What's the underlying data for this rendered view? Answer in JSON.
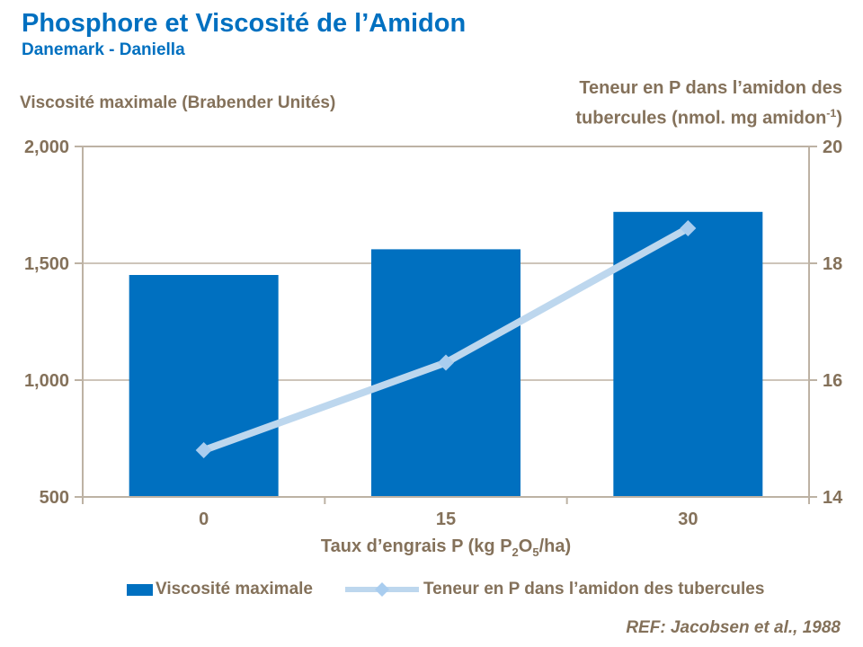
{
  "header": {
    "title": "Phosphore et Viscosité de l’Amidon",
    "subtitle": "Danemark - Daniella"
  },
  "axes": {
    "left_title": "Viscosité maximale (Brabender Unités)",
    "right_title": {
      "line1": "Teneur en P dans l’amidon des",
      "line2_pre": "tubercules (nmol. mg amidon",
      "sup": "-1",
      "line2_post": ")"
    },
    "x_title": {
      "pre": "Taux d’engrais P (kg P",
      "sub1": "2",
      "mid": "O",
      "sub2": "5",
      "post": "/ha)"
    }
  },
  "chart_data": {
    "type": "combo-bar-line",
    "title": "Phosphore et Viscosité de l’Amidon",
    "subtitle": "Danemark - Daniella",
    "categories": [
      "0",
      "15",
      "30"
    ],
    "x_axis_label": "Taux d’engrais P (kg P2O5/ha)",
    "series": [
      {
        "name": "Viscosité maximale",
        "type": "bar",
        "axis": "left",
        "values": [
          1450,
          1560,
          1720
        ]
      },
      {
        "name": "Teneur en P dans l’amidon des tubercules",
        "type": "line",
        "axis": "right",
        "values": [
          14.8,
          16.3,
          18.6
        ],
        "marker": "diamond"
      }
    ],
    "left_axis": {
      "label": "Viscosité maximale (Brabender Unités)",
      "min": 500,
      "max": 2000,
      "ticks": [
        {
          "value": 2000,
          "label": "2,000"
        },
        {
          "value": 1500,
          "label": "1,500"
        },
        {
          "value": 1000,
          "label": "1,000"
        },
        {
          "value": 500,
          "label": "500"
        }
      ],
      "gridlines": [
        1500,
        1000
      ]
    },
    "right_axis": {
      "label": "Teneur en P dans l’amidon des tubercules (nmol. mg amidon⁻¹)",
      "min": 14,
      "max": 20,
      "ticks": [
        {
          "value": 20,
          "label": "20"
        },
        {
          "value": 18,
          "label": "18"
        },
        {
          "value": 16,
          "label": "16"
        },
        {
          "value": 14,
          "label": "14"
        }
      ]
    },
    "legend_position": "bottom",
    "grid": "horizontal-major-only"
  },
  "legend": {
    "items": [
      {
        "label": "Viscosité maximale",
        "swatch": "bar"
      },
      {
        "label": "Teneur en P dans l’amidon des tubercules",
        "swatch": "line-diamond"
      }
    ]
  },
  "footer": {
    "ref": "REF: Jacobsen et al., 1988"
  },
  "colors": {
    "title_blue": "#0070C0",
    "bar_blue": "#0070C0",
    "line_blue": "#BDD7EE",
    "marker_blue": "#A9CDEF",
    "text_taupe": "#84715A",
    "frame_color": "#BDB2A4"
  }
}
